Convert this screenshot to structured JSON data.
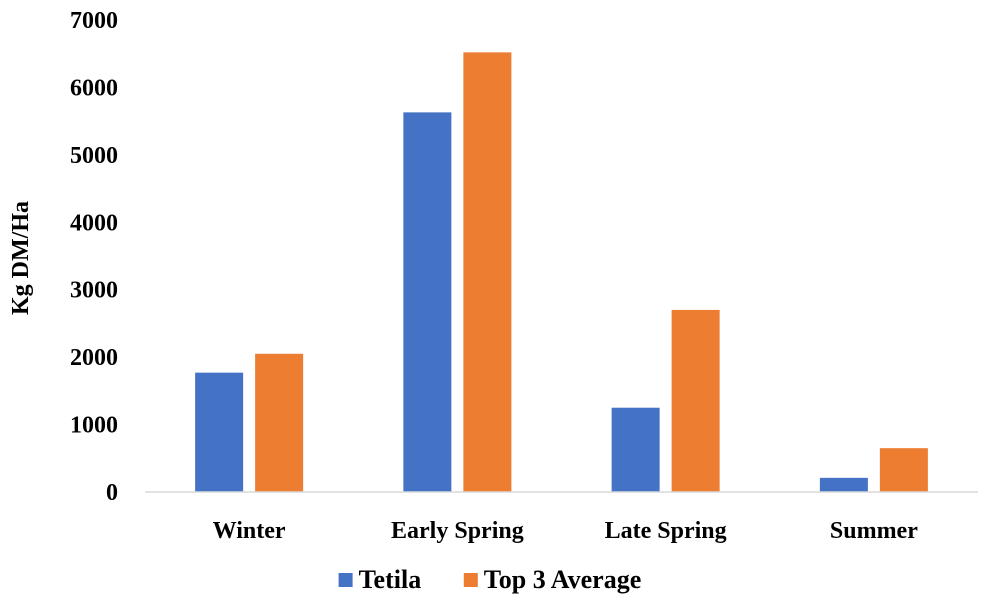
{
  "chart_data": {
    "type": "bar",
    "title": "",
    "xlabel": "",
    "ylabel": "Kg DM/Ha",
    "ylim": [
      0,
      7000
    ],
    "yticks": [
      0,
      1000,
      2000,
      3000,
      4000,
      5000,
      6000,
      7000
    ],
    "grid": false,
    "legend_position": "bottom",
    "categories": [
      "Winter",
      "Early Spring",
      "Late Spring",
      "Summer"
    ],
    "series": [
      {
        "name": "Tetila",
        "color": "#4472C4",
        "values": [
          1770,
          5630,
          1250,
          210
        ]
      },
      {
        "name": "Top 3 Average",
        "color": "#ED7D31",
        "values": [
          2050,
          6520,
          2700,
          650
        ]
      }
    ]
  }
}
